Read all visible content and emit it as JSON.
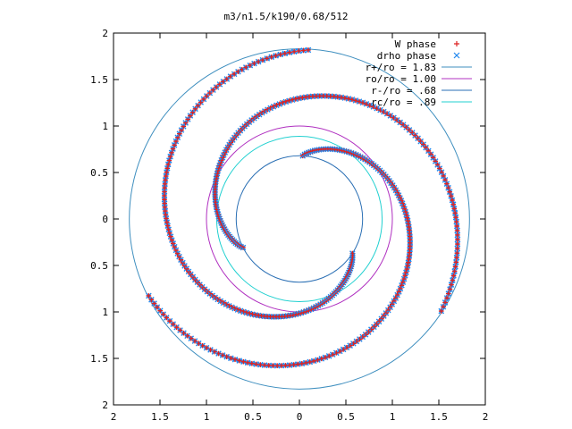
{
  "chart_data": {
    "type": "scatter",
    "title": "m3/n1.5/k190/0.68/512",
    "xlabel": "",
    "ylabel": "",
    "xlim": [
      -2,
      2
    ],
    "ylim": [
      -2,
      2
    ],
    "x_ticks": [
      {
        "value": -2,
        "label": "2"
      },
      {
        "value": -1.5,
        "label": "1.5"
      },
      {
        "value": -1,
        "label": "1"
      },
      {
        "value": -0.5,
        "label": "0.5"
      },
      {
        "value": 0,
        "label": "0"
      },
      {
        "value": 0.5,
        "label": "0.5"
      },
      {
        "value": 1,
        "label": "1"
      },
      {
        "value": 1.5,
        "label": "1.5"
      },
      {
        "value": 2,
        "label": "2"
      }
    ],
    "y_ticks": [
      {
        "value": -2,
        "label": "2"
      },
      {
        "value": -1.5,
        "label": "1.5"
      },
      {
        "value": -1,
        "label": "1"
      },
      {
        "value": -0.5,
        "label": "0.5"
      },
      {
        "value": 0,
        "label": "0"
      },
      {
        "value": 0.5,
        "label": "0.5"
      },
      {
        "value": 1,
        "label": "1"
      },
      {
        "value": 1.5,
        "label": "1.5"
      },
      {
        "value": 2,
        "label": "2"
      }
    ],
    "grid": false,
    "legend_position": "top-right",
    "circles": [
      {
        "name": "r+/ro = 1.83",
        "radius": 1.83,
        "color": "#3f8fbf"
      },
      {
        "name": "ro/ro = 1.00",
        "radius": 1.0,
        "color": "#b030c0"
      },
      {
        "name": "r-/ro = .68",
        "radius": 0.68,
        "color": "#2a6fb4"
      },
      {
        "name": "rc/ro = .89",
        "radius": 0.89,
        "color": "#20d0d0"
      }
    ],
    "series": [
      {
        "name": "W phase",
        "marker": "+",
        "color": "#dd2222"
      },
      {
        "name": "drho phase",
        "marker": "x",
        "color": "#2288ee"
      }
    ],
    "arms": [
      {
        "r_start": 0.68,
        "r_end": 1.82,
        "theta_start_deg": 87,
        "theta_sweep_deg": -240
      },
      {
        "r_start": 0.68,
        "r_end": 1.82,
        "theta_start_deg": 207,
        "theta_sweep_deg": -240
      },
      {
        "r_start": 0.68,
        "r_end": 1.82,
        "theta_start_deg": 327,
        "theta_sweep_deg": -240
      }
    ]
  }
}
